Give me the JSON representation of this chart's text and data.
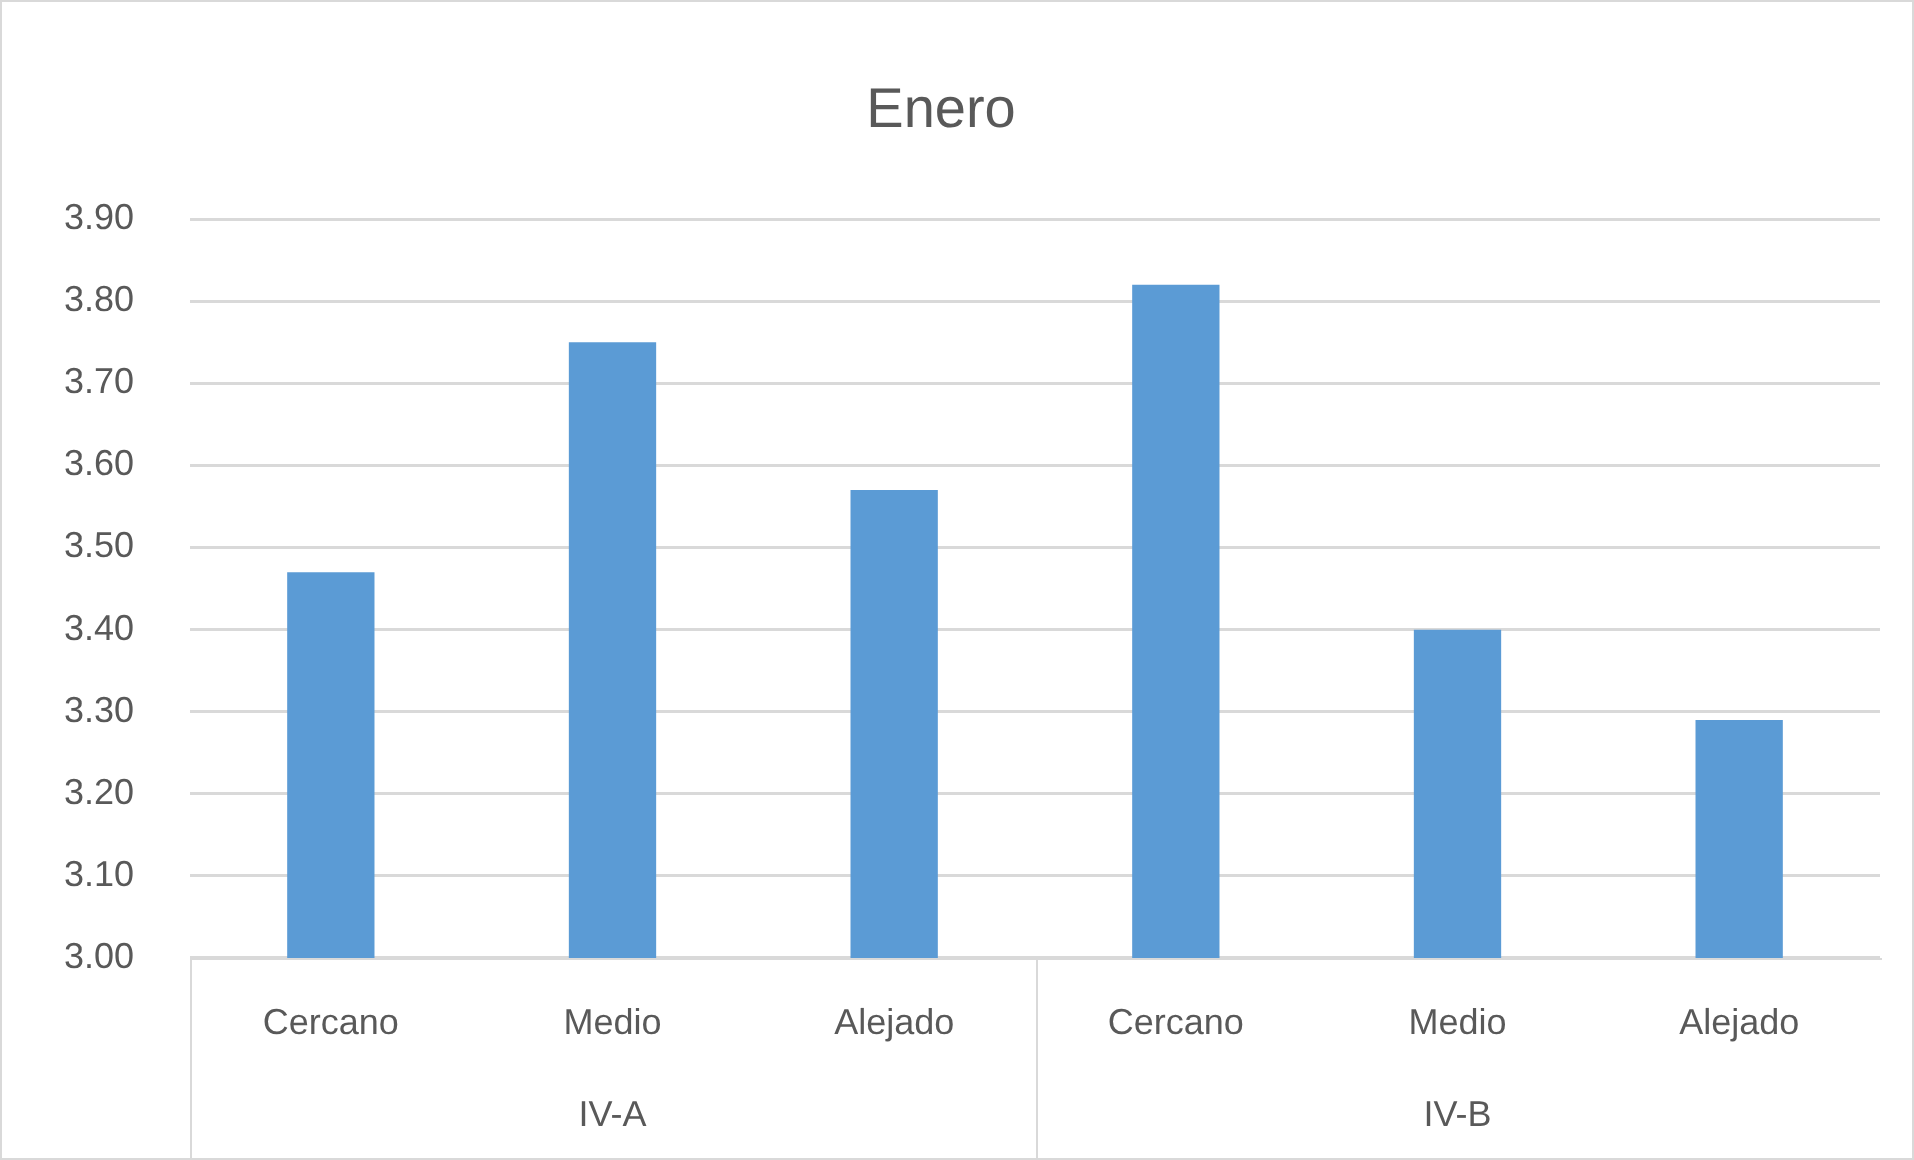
{
  "chart_data": {
    "type": "bar",
    "title": "Enero",
    "categories": [
      "Cercano",
      "Medio",
      "Alejado",
      "Cercano",
      "Medio",
      "Alejado"
    ],
    "values": [
      3.47,
      3.75,
      3.57,
      3.82,
      3.4,
      3.29
    ],
    "color": "#5b9bd5",
    "ylim": [
      3.0,
      3.9
    ],
    "yticks": [
      {
        "value": 3.0,
        "label": "3.00"
      },
      {
        "value": 3.1,
        "label": "3.10"
      },
      {
        "value": 3.2,
        "label": "3.20"
      },
      {
        "value": 3.3,
        "label": "3.30"
      },
      {
        "value": 3.4,
        "label": "3.40"
      },
      {
        "value": 3.5,
        "label": "3.50"
      },
      {
        "value": 3.6,
        "label": "3.60"
      },
      {
        "value": 3.7,
        "label": "3.70"
      },
      {
        "value": 3.8,
        "label": "3.80"
      },
      {
        "value": 3.9,
        "label": "3.90"
      }
    ],
    "grid": "y",
    "legend": false,
    "annotations": [
      "IV-A",
      "IV-B"
    ]
  }
}
